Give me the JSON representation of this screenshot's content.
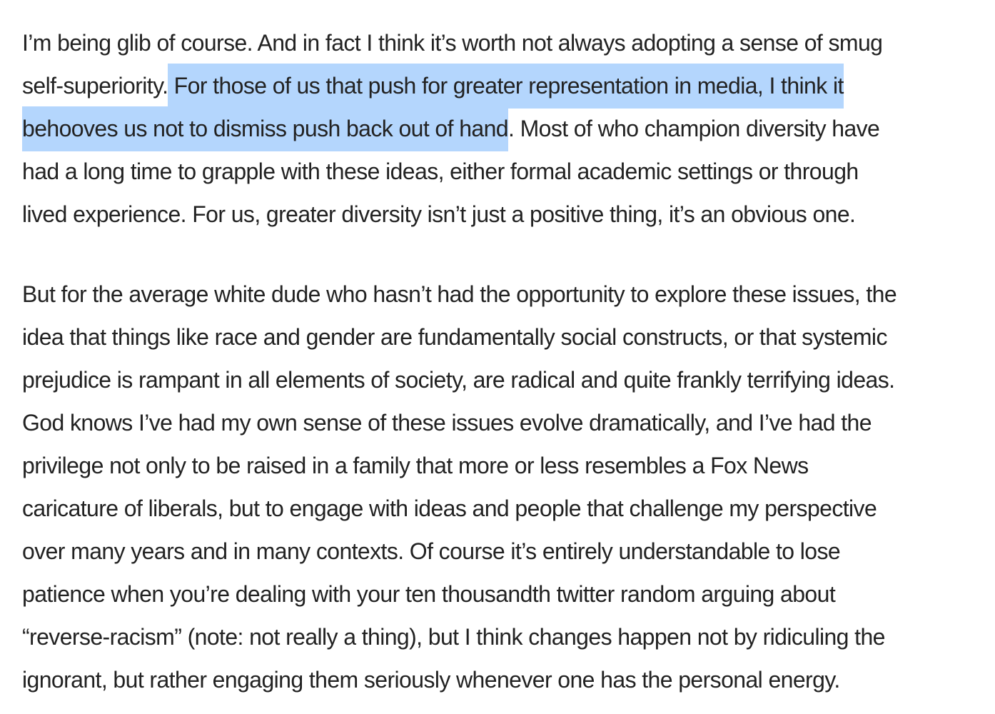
{
  "article": {
    "paragraphs": [
      {
        "lines": [
          {
            "before": "I’m being glib of course. And in fact I think it’s worth not always adopting a sense of smug",
            "highlight": "",
            "after": ""
          },
          {
            "before": "self-superiority.",
            "highlight": " For those of us that push for greater representation in media, I think it",
            "after": ""
          },
          {
            "before": "",
            "highlight": "behooves us not to dismiss push back out of hand",
            "after": ". Most of who champion diversity have"
          },
          {
            "before": "had a long time to grapple with these ideas, either formal academic settings or through",
            "highlight": "",
            "after": ""
          },
          {
            "before": "lived experience. For us, greater diversity isn’t just a positive thing, it’s an obvious one.",
            "highlight": "",
            "after": ""
          }
        ]
      },
      {
        "lines": [
          {
            "before": "But for the average white dude who hasn’t had the opportunity to explore these issues, the",
            "highlight": "",
            "after": ""
          },
          {
            "before": "idea that things like race and gender are fundamentally social constructs, or that systemic",
            "highlight": "",
            "after": ""
          },
          {
            "before": "prejudice is rampant in all elements of society, are radical and quite frankly terrifying ideas.",
            "highlight": "",
            "after": ""
          },
          {
            "before": "God knows I’ve had my own sense of these issues evolve dramatically, and I’ve had the",
            "highlight": "",
            "after": ""
          },
          {
            "before": "privilege not only to be raised in a family that more or less resembles a Fox News",
            "highlight": "",
            "after": ""
          },
          {
            "before": "caricature of liberals, but to engage with ideas and people that challenge my perspective",
            "highlight": "",
            "after": ""
          },
          {
            "before": "over many years and in many contexts. Of course it’s entirely understandable to lose",
            "highlight": "",
            "after": ""
          },
          {
            "before": "patience when you’re dealing with your ten thousandth twitter random arguing about",
            "highlight": "",
            "after": ""
          },
          {
            "before": "“reverse-racism” (note: not really a thing), but I think changes happen not by ridiculing the",
            "highlight": "",
            "after": ""
          },
          {
            "before": "ignorant, but rather engaging them seriously whenever one has the personal energy.",
            "highlight": "",
            "after": ""
          }
        ]
      }
    ]
  },
  "colors": {
    "text": "#222222",
    "selection_highlight": "#b4d6fd",
    "background": "#ffffff"
  }
}
